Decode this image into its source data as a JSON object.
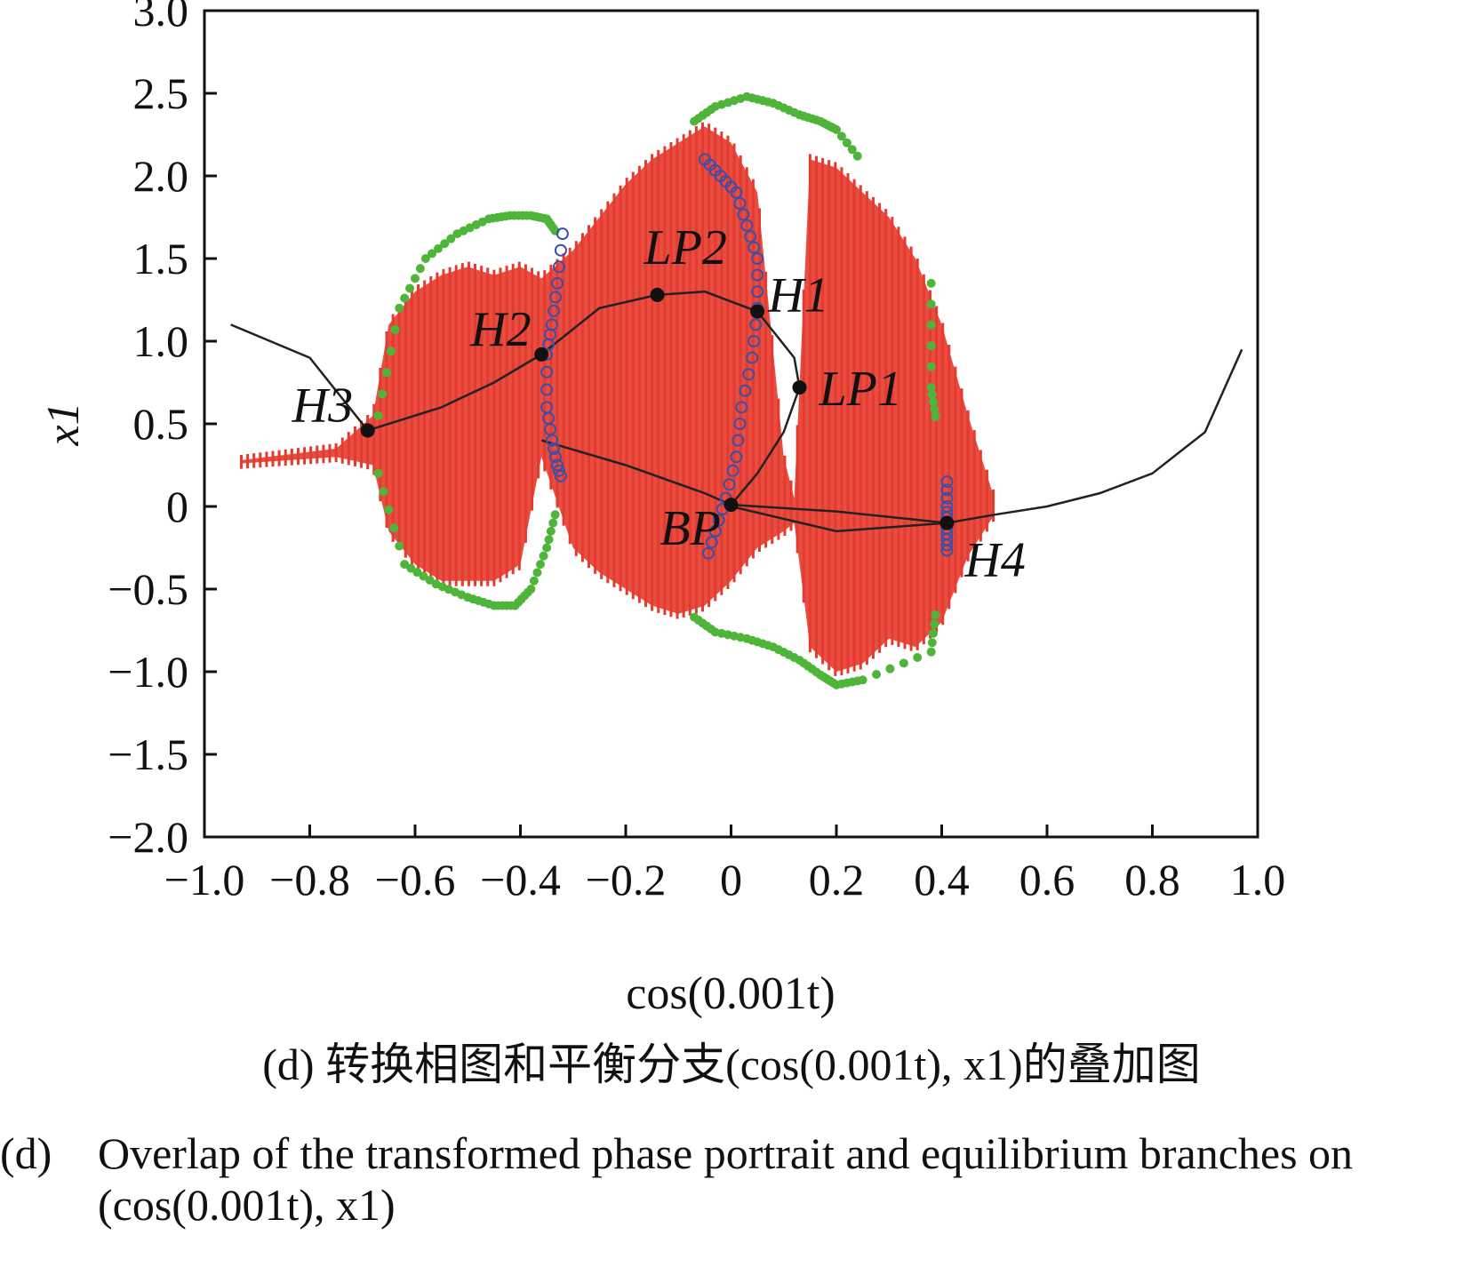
{
  "chart_data": {
    "type": "scatter",
    "xlabel": "cos(0.001t)",
    "ylabel": "x1",
    "xlim": [
      -1.0,
      1.0
    ],
    "ylim": [
      -2.0,
      3.0
    ],
    "xticks": [
      "−1.0",
      "−0.8",
      "−0.6",
      "−0.4",
      "−0.2",
      "0",
      "0.2",
      "0.4",
      "0.6",
      "0.8",
      "1.0"
    ],
    "xtick_values": [
      -1.0,
      -0.8,
      -0.6,
      -0.4,
      -0.2,
      0,
      0.2,
      0.4,
      0.6,
      0.8,
      1.0
    ],
    "yticks": [
      "3.0",
      "2.5",
      "2.0",
      "1.5",
      "1.0",
      "0.5",
      "0",
      "−0.5",
      "−1.0",
      "−1.5",
      "−2.0"
    ],
    "ytick_values": [
      3.0,
      2.5,
      2.0,
      1.5,
      1.0,
      0.5,
      0,
      -0.5,
      -1.0,
      -1.5,
      -2.0
    ],
    "grid": false,
    "colors": {
      "phase_portrait": "#e53a2e",
      "stable_limit_cycle": "#4fb53a",
      "unstable_limit_cycle": "#3b4fa8",
      "equilibrium_branch": "#222222",
      "bifurcation_point": "#111111"
    },
    "bifurcation_points": [
      {
        "label": "H3",
        "x": -0.69,
        "y": 0.46
      },
      {
        "label": "H2",
        "x": -0.36,
        "y": 0.92
      },
      {
        "label": "LP2",
        "x": -0.14,
        "y": 1.28
      },
      {
        "label": "H1",
        "x": 0.05,
        "y": 1.18
      },
      {
        "label": "LP1",
        "x": 0.13,
        "y": 0.72
      },
      {
        "label": "BP",
        "x": 0.0,
        "y": 0.01
      },
      {
        "label": "H4",
        "x": 0.41,
        "y": -0.1
      }
    ],
    "equilibrium_branches": [
      {
        "x": [
          -0.95,
          -0.8,
          -0.69,
          -0.55
        ],
        "y": [
          1.1,
          0.9,
          0.46,
          0.6
        ]
      },
      {
        "x": [
          -0.55,
          -0.45,
          -0.36
        ],
        "y": [
          0.6,
          0.75,
          0.92
        ]
      },
      {
        "x": [
          -0.36,
          -0.25,
          -0.14,
          -0.05,
          0.05,
          0.12,
          0.13,
          0.1,
          0.05,
          0.0
        ],
        "y": [
          0.92,
          1.2,
          1.28,
          1.3,
          1.18,
          0.9,
          0.72,
          0.45,
          0.2,
          0.01
        ]
      },
      {
        "x": [
          -0.36,
          -0.2,
          -0.05,
          0.0
        ],
        "y": [
          0.4,
          0.25,
          0.08,
          0.01
        ]
      },
      {
        "x": [
          0.0,
          0.2,
          0.41
        ],
        "y": [
          0.01,
          -0.03,
          -0.1
        ]
      },
      {
        "x": [
          0.0,
          0.2,
          0.41
        ],
        "y": [
          0.0,
          -0.15,
          -0.1
        ]
      },
      {
        "x": [
          0.41,
          0.5,
          0.6,
          0.7,
          0.8,
          0.9,
          0.97
        ],
        "y": [
          -0.1,
          -0.05,
          0.0,
          0.08,
          0.2,
          0.45,
          0.95
        ]
      }
    ],
    "stable_limit_cycles": [
      {
        "x": [
          -0.67,
          -0.63,
          -0.58,
          -0.52,
          -0.46,
          -0.42,
          -0.38,
          -0.35,
          -0.33
        ],
        "y": [
          0.55,
          1.2,
          1.5,
          1.65,
          1.74,
          1.76,
          1.76,
          1.74,
          1.65
        ]
      },
      {
        "x": [
          -0.67,
          -0.62,
          -0.56,
          -0.5,
          -0.45,
          -0.41,
          -0.38,
          -0.35,
          -0.33
        ],
        "y": [
          0.2,
          -0.35,
          -0.47,
          -0.55,
          -0.6,
          -0.6,
          -0.5,
          -0.25,
          0.0
        ]
      },
      {
        "x": [
          -0.07,
          -0.03,
          0.03,
          0.08,
          0.13,
          0.17,
          0.2,
          0.25
        ],
        "y": [
          2.33,
          2.42,
          2.48,
          2.44,
          2.37,
          2.33,
          2.28,
          2.08
        ]
      },
      {
        "x": [
          -0.07,
          -0.03,
          0.03,
          0.08,
          0.13,
          0.17,
          0.2,
          0.25,
          0.38,
          0.39
        ],
        "y": [
          -0.67,
          -0.76,
          -0.8,
          -0.85,
          -0.93,
          -1.02,
          -1.08,
          -1.05,
          -0.88,
          -0.6
        ]
      },
      {
        "x": [
          0.38,
          0.38,
          0.39
        ],
        "y": [
          1.35,
          0.72,
          0.5
        ]
      }
    ],
    "unstable_limit_cycles": [
      {
        "x": [
          -0.32,
          -0.33,
          -0.34,
          -0.35,
          -0.35,
          -0.34,
          -0.33,
          -0.32
        ],
        "y": [
          1.65,
          1.35,
          1.1,
          0.92,
          0.6,
          0.4,
          0.25,
          0.15
        ]
      },
      {
        "x": [
          -0.05,
          -0.02,
          0.01,
          0.03,
          0.05,
          0.05,
          0.04,
          0.02,
          0.01,
          -0.01,
          -0.03,
          -0.05
        ],
        "y": [
          2.1,
          2.0,
          1.9,
          1.7,
          1.5,
          1.2,
          0.9,
          0.6,
          0.3,
          0.05,
          -0.15,
          -0.35
        ]
      },
      {
        "x": [
          0.41,
          0.41,
          0.41,
          0.41,
          0.41
        ],
        "y": [
          0.15,
          0.0,
          -0.1,
          -0.2,
          -0.3
        ]
      }
    ],
    "annotations": [
      "H3",
      "H2",
      "LP2",
      "H1",
      "LP1",
      "BP",
      "H4"
    ],
    "phase_portrait_envelope": {
      "x": [
        -0.93,
        -0.75,
        -0.68,
        -0.65,
        -0.6,
        -0.55,
        -0.5,
        -0.45,
        -0.4,
        -0.36,
        -0.3,
        -0.25,
        -0.2,
        -0.15,
        -0.1,
        -0.05,
        0.0,
        0.05,
        0.1,
        0.12,
        0.15,
        0.2,
        0.25,
        0.3,
        0.35,
        0.4,
        0.45,
        0.5
      ],
      "upper": [
        0.28,
        0.35,
        0.55,
        1.1,
        1.3,
        1.4,
        1.45,
        1.4,
        1.45,
        1.38,
        1.55,
        1.75,
        1.95,
        2.1,
        2.2,
        2.3,
        2.2,
        1.9,
        0.3,
        0.05,
        2.1,
        2.05,
        1.9,
        1.75,
        1.5,
        1.1,
        0.55,
        0.05
      ],
      "lower": [
        0.26,
        0.3,
        0.25,
        -0.15,
        -0.35,
        -0.45,
        -0.45,
        -0.45,
        -0.35,
        0.3,
        -0.25,
        -0.4,
        -0.5,
        -0.6,
        -0.65,
        -0.6,
        -0.45,
        -0.25,
        -0.15,
        -0.1,
        -0.85,
        -1.0,
        -0.95,
        -0.8,
        -0.85,
        -0.7,
        -0.3,
        -0.05
      ]
    }
  },
  "captions": {
    "cn": "(d)  转换相图和平衡分支(cos(0.001t), x1)的叠加图",
    "en_label": "(d)",
    "en": "Overlap of the transformed phase portrait and equilibrium branches on (cos(0.001t), x1)"
  }
}
